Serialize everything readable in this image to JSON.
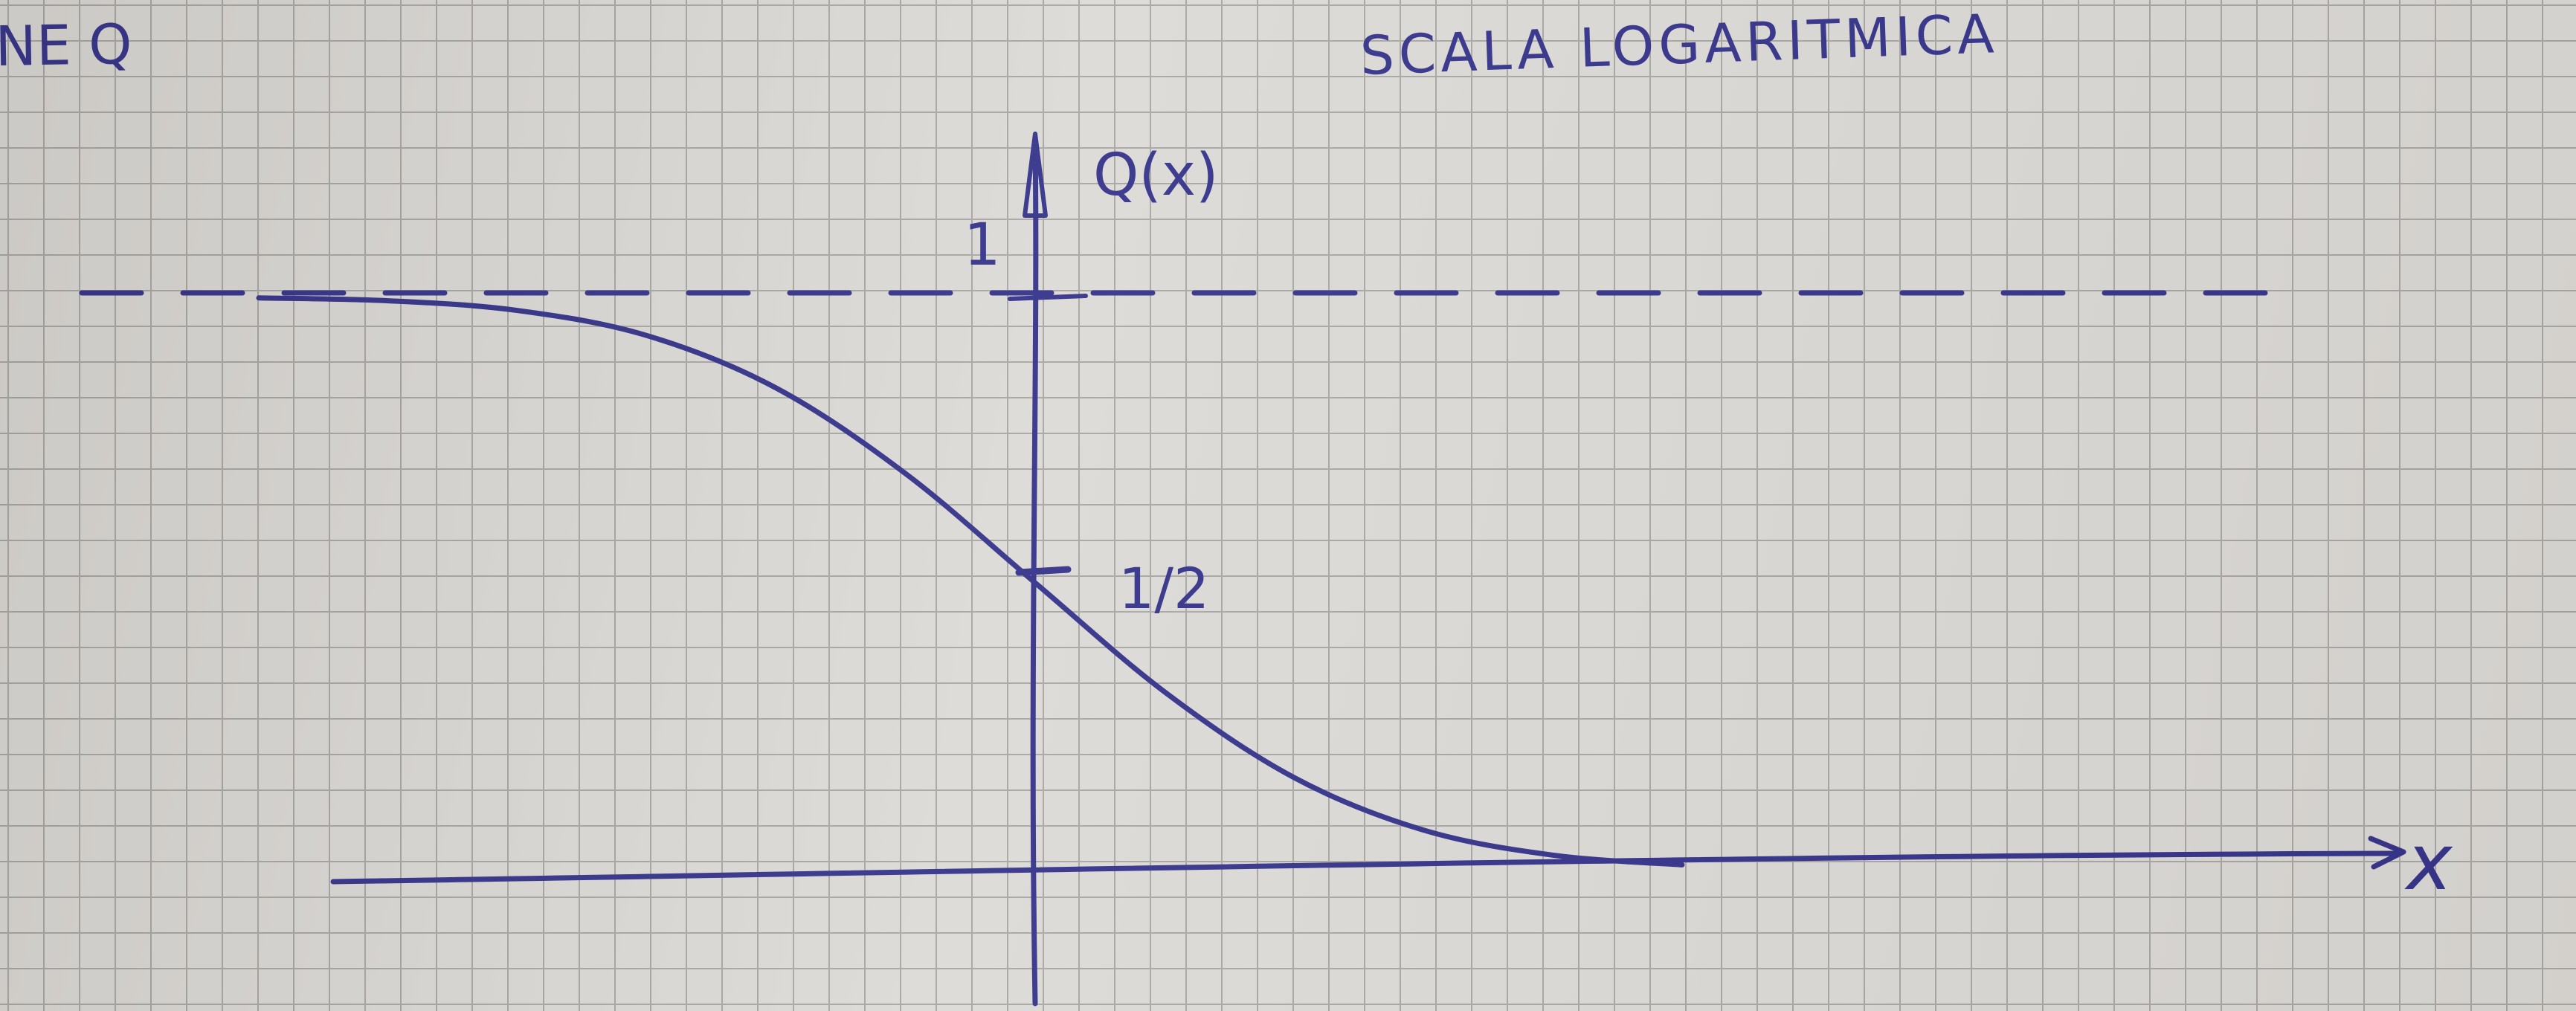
{
  "header": {
    "left_fragment": "NE Q",
    "right_title": "SCALA LOGARITMICA"
  },
  "chart_data": {
    "type": "line",
    "title": "",
    "xlabel": "x",
    "ylabel": "Q(x)",
    "y_ticks": [
      {
        "value": 1,
        "label": "1"
      },
      {
        "value": 0.5,
        "label": "1/2"
      }
    ],
    "asymptote": {
      "y": 1,
      "style": "dashed"
    },
    "series": [
      {
        "x": [
          -3.0,
          -2.5,
          -2.0,
          -1.5,
          -1.0,
          -0.5,
          0.0,
          0.5,
          1.0,
          1.5,
          2.0,
          2.5
        ],
        "values": [
          0.999,
          0.994,
          0.977,
          0.933,
          0.841,
          0.691,
          0.5,
          0.309,
          0.159,
          0.067,
          0.023,
          0.006
        ]
      }
    ],
    "color": "#35338a",
    "grid": true
  }
}
